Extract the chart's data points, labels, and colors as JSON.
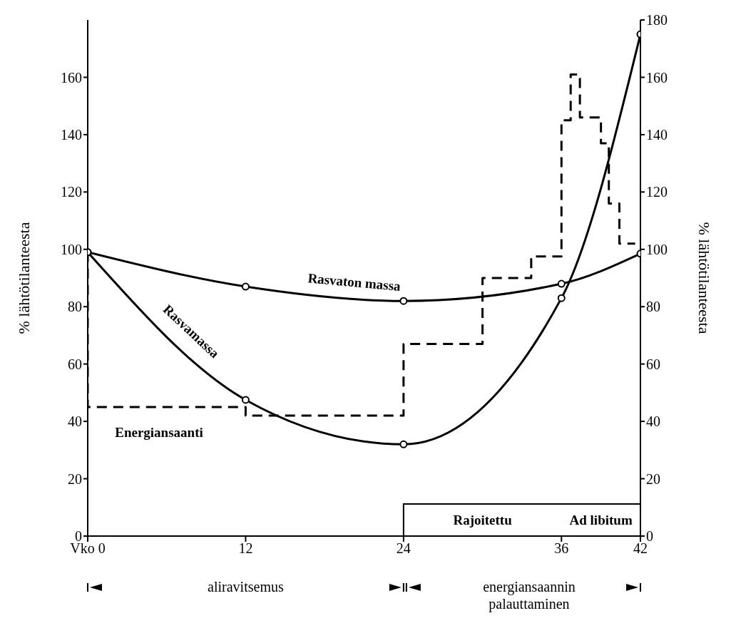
{
  "chart_data": {
    "type": "line",
    "ylabel": "% lähtötilanteesta",
    "y2label": "% lähtötilanteesta",
    "xlim": [
      0,
      42
    ],
    "xticks": [
      {
        "value": 0,
        "label": "Vko 0"
      },
      12,
      24,
      36,
      42
    ],
    "ylim": [
      0,
      180
    ],
    "yticks": [
      0,
      20,
      40,
      60,
      80,
      100,
      120,
      140,
      160
    ],
    "y2lim": [
      0,
      180
    ],
    "y2ticks": [
      0,
      20,
      40,
      60,
      80,
      100,
      120,
      140,
      160,
      180
    ],
    "grid": false,
    "annotations": [
      "Rajoitettu",
      "Ad libitum",
      "aliravitsemus",
      "energiansaannin palauttaminen"
    ],
    "series": [
      {
        "name": "Rasvaton massa",
        "type": "line",
        "color": "#000000",
        "x": [
          0,
          12,
          24,
          36,
          42
        ],
        "values": [
          99,
          87,
          82,
          88,
          98.5
        ],
        "marker": "circle",
        "line_style": "solid"
      },
      {
        "name": "Rasvamassa",
        "type": "line",
        "color": "#000000",
        "x": [
          0,
          12,
          24,
          36,
          42
        ],
        "values": [
          99,
          47.5,
          32,
          83,
          175
        ],
        "marker": "circle",
        "line_style": "solid"
      },
      {
        "name": "Energiansaanti",
        "type": "step",
        "color": "#000000",
        "x": [
          0,
          0,
          12,
          24,
          30,
          33.7,
          36,
          36.7,
          37.4,
          39,
          39.6,
          40.4,
          41.6
        ],
        "values": [
          99,
          45,
          42,
          67,
          90,
          97.5,
          145,
          161,
          146,
          137,
          116,
          102,
          102
        ],
        "marker": "none",
        "line_style": "dashed"
      }
    ]
  }
}
